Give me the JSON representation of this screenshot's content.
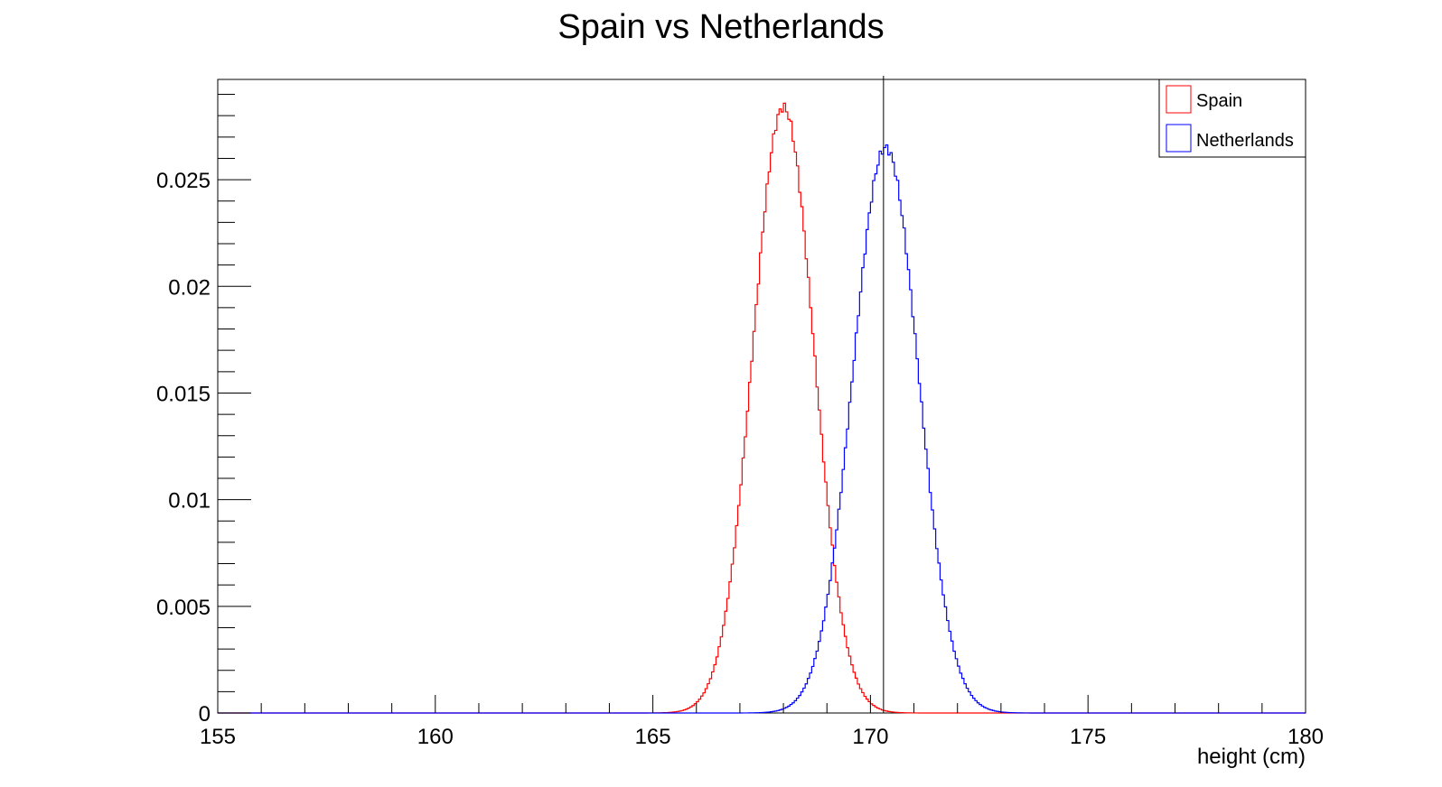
{
  "chart_data": {
    "type": "histogram",
    "title": "Spain vs Netherlands",
    "xlabel": "height (cm)",
    "ylabel": "",
    "xlim": [
      155,
      180
    ],
    "ylim": [
      0,
      0.0297
    ],
    "x_ticks": [
      "155",
      "160",
      "165",
      "170",
      "175",
      "180"
    ],
    "y_ticks": [
      "0",
      "0.005",
      "0.01",
      "0.015",
      "0.02",
      "0.025"
    ],
    "legend_position": "top-right",
    "vertical_marker_x": 170.3,
    "series": [
      {
        "name": "Spain",
        "color": "#ff0000",
        "mean": 168.0,
        "sigma": 0.7,
        "peak": 0.0284
      },
      {
        "name": "Netherlands",
        "color": "#0000ff",
        "mean": 170.35,
        "sigma": 0.75,
        "peak": 0.0265
      }
    ]
  }
}
